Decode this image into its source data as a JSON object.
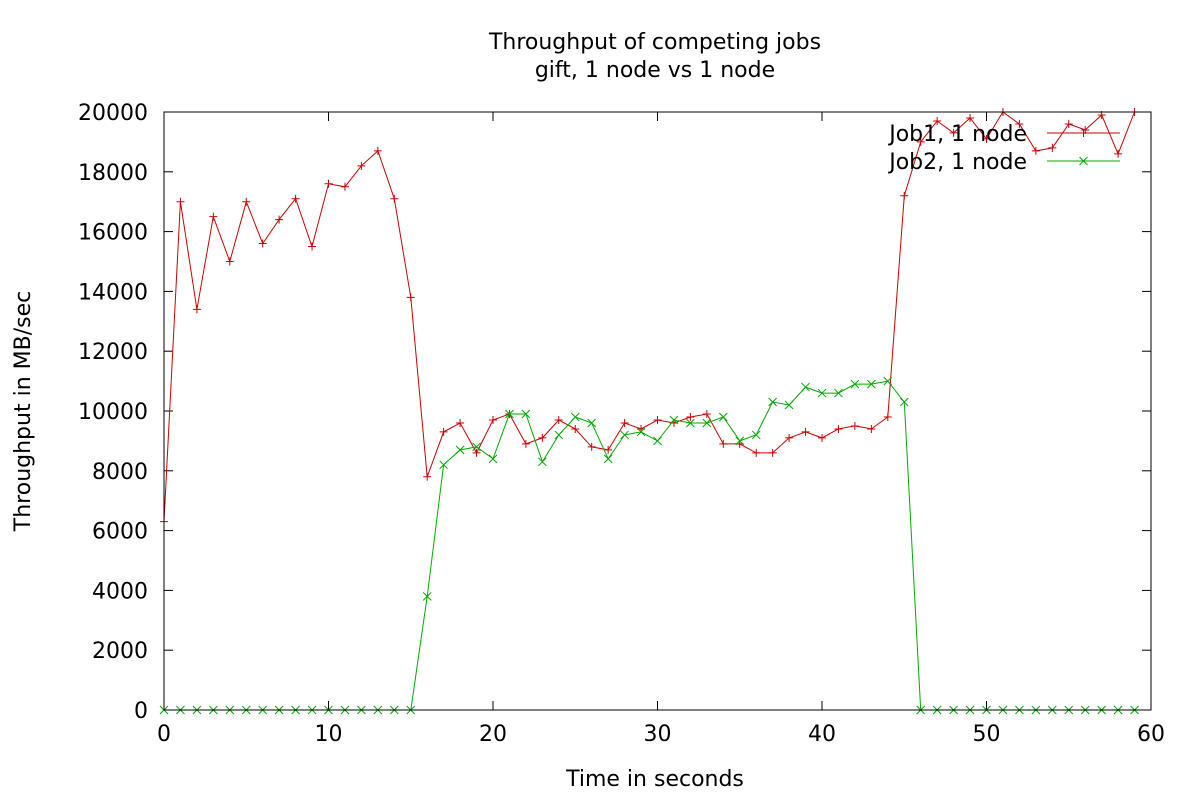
{
  "chart_data": {
    "type": "line",
    "title": "Throughput of competing jobs",
    "subtitle": "gift, 1 node vs 1 node",
    "xlabel": "Time in seconds",
    "ylabel": "Throughput in MB/sec",
    "xlim": [
      0,
      60
    ],
    "ylim": [
      0,
      20000
    ],
    "xticks": [
      0,
      10,
      20,
      30,
      40,
      50,
      60
    ],
    "yticks": [
      0,
      2000,
      4000,
      6000,
      8000,
      10000,
      12000,
      14000,
      16000,
      18000,
      20000
    ],
    "grid": false,
    "legend_position": "top-right",
    "series": [
      {
        "name": "Job1, 1 node",
        "color": "#cc0000",
        "marker": "plus",
        "x": [
          0,
          1,
          2,
          3,
          4,
          5,
          6,
          7,
          8,
          9,
          10,
          11,
          12,
          13,
          14,
          15,
          16,
          17,
          18,
          19,
          20,
          21,
          22,
          23,
          24,
          25,
          26,
          27,
          28,
          29,
          30,
          31,
          32,
          33,
          34,
          35,
          36,
          37,
          38,
          39,
          40,
          41,
          42,
          43,
          44,
          45,
          46,
          47,
          48,
          49,
          50,
          51,
          52,
          53,
          54,
          55,
          56,
          57,
          58,
          59
        ],
        "y": [
          6300,
          17000,
          13400,
          16500,
          15000,
          17000,
          15600,
          16400,
          17100,
          15500,
          17600,
          17500,
          18200,
          18700,
          17100,
          13800,
          7800,
          9300,
          9600,
          8600,
          9700,
          9900,
          8900,
          9100,
          9700,
          9400,
          8800,
          8700,
          9600,
          9400,
          9700,
          9600,
          9800,
          9900,
          8900,
          8900,
          8600,
          8600,
          9100,
          9300,
          9100,
          9400,
          9500,
          9400,
          9800,
          17200,
          19000,
          19700,
          19300,
          19800,
          19100,
          20000,
          19600,
          18700,
          18800,
          19600,
          19400,
          19900,
          18600,
          20000
        ]
      },
      {
        "name": "Job2, 1 node",
        "color": "#00aa00",
        "marker": "x",
        "x": [
          0,
          1,
          2,
          3,
          4,
          5,
          6,
          7,
          8,
          9,
          10,
          11,
          12,
          13,
          14,
          15,
          16,
          17,
          18,
          19,
          20,
          21,
          22,
          23,
          24,
          25,
          26,
          27,
          28,
          29,
          30,
          31,
          32,
          33,
          34,
          35,
          36,
          37,
          38,
          39,
          40,
          41,
          42,
          43,
          44,
          45,
          46,
          47,
          48,
          49,
          50,
          51,
          52,
          53,
          54,
          55,
          56,
          57,
          58,
          59
        ],
        "y": [
          0,
          0,
          0,
          0,
          0,
          0,
          0,
          0,
          0,
          0,
          0,
          0,
          0,
          0,
          0,
          0,
          3800,
          8200,
          8700,
          8800,
          8400,
          9900,
          9900,
          8300,
          9200,
          9800,
          9600,
          8400,
          9200,
          9300,
          9000,
          9700,
          9600,
          9600,
          9800,
          9000,
          9200,
          10300,
          10200,
          10800,
          10600,
          10600,
          10900,
          10900,
          11000,
          10300,
          0,
          0,
          0,
          0,
          0,
          0,
          0,
          0,
          0,
          0,
          0,
          0,
          0,
          0
        ]
      }
    ]
  }
}
